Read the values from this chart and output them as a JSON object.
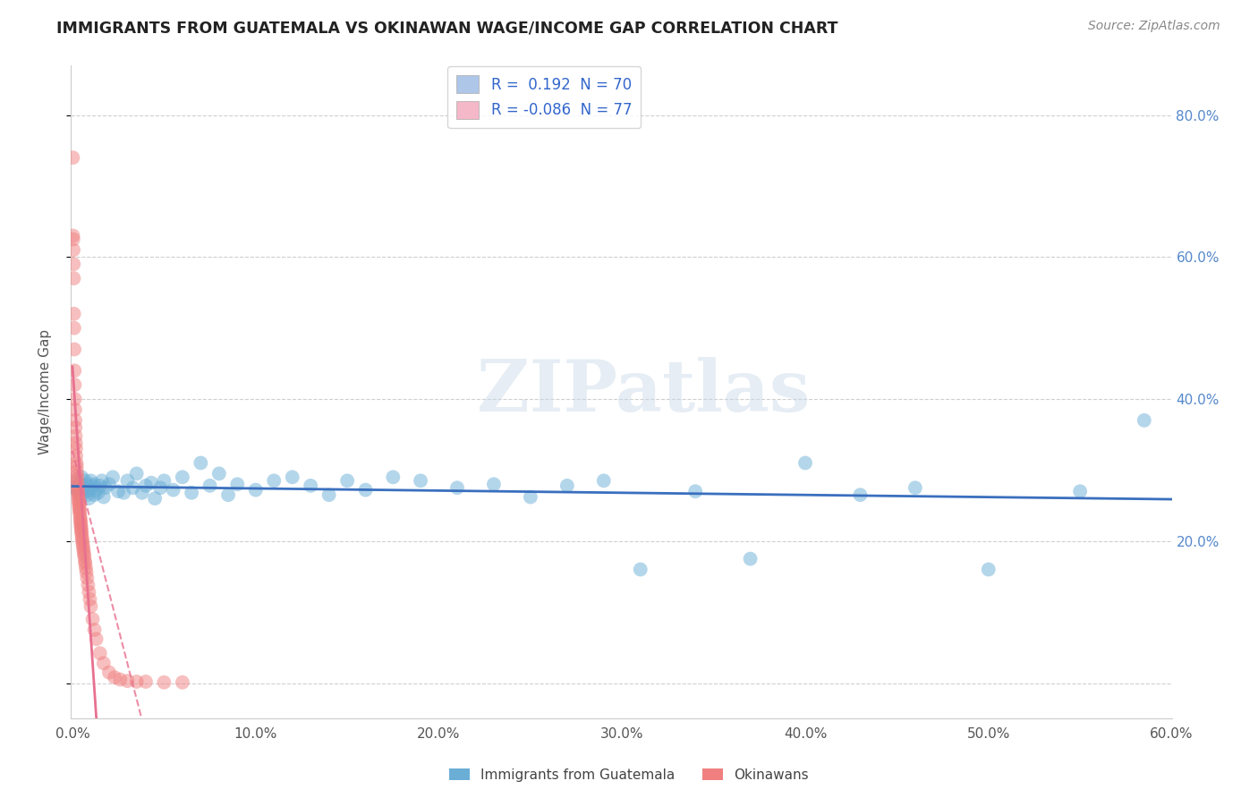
{
  "title": "IMMIGRANTS FROM GUATEMALA VS OKINAWAN WAGE/INCOME GAP CORRELATION CHART",
  "source": "Source: ZipAtlas.com",
  "ylabel": "Wage/Income Gap",
  "xlim": [
    -0.001,
    0.6
  ],
  "ylim": [
    -0.05,
    0.87
  ],
  "xticks": [
    0.0,
    0.1,
    0.2,
    0.3,
    0.4,
    0.5,
    0.6
  ],
  "yticks": [
    0.0,
    0.2,
    0.4,
    0.6,
    0.8
  ],
  "xticklabels": [
    "0.0%",
    "10.0%",
    "20.0%",
    "30.0%",
    "40.0%",
    "50.0%",
    "60.0%"
  ],
  "right_yticklabels": [
    "",
    "20.0%",
    "40.0%",
    "60.0%",
    "80.0%"
  ],
  "legend_entries": [
    {
      "label": "R =  0.192  N = 70",
      "color": "#aec6e8"
    },
    {
      "label": "R = -0.086  N = 77",
      "color": "#f4b8c8"
    }
  ],
  "blue_color": "#6aaed6",
  "pink_color": "#f08080",
  "blue_line_color": "#3a6fbe",
  "pink_line_color": "#e87090",
  "watermark": "ZIPatlas",
  "background_color": "#ffffff",
  "grid_color": "#bbbbbb",
  "blue_scatter_x": [
    0.001,
    0.002,
    0.003,
    0.004,
    0.004,
    0.005,
    0.005,
    0.006,
    0.006,
    0.007,
    0.007,
    0.008,
    0.008,
    0.009,
    0.009,
    0.01,
    0.01,
    0.011,
    0.012,
    0.012,
    0.013,
    0.014,
    0.015,
    0.016,
    0.017,
    0.018,
    0.02,
    0.022,
    0.025,
    0.028,
    0.03,
    0.033,
    0.035,
    0.038,
    0.04,
    0.043,
    0.045,
    0.048,
    0.05,
    0.055,
    0.06,
    0.065,
    0.07,
    0.075,
    0.08,
    0.085,
    0.09,
    0.1,
    0.11,
    0.12,
    0.13,
    0.14,
    0.15,
    0.16,
    0.175,
    0.19,
    0.21,
    0.23,
    0.25,
    0.27,
    0.29,
    0.31,
    0.34,
    0.37,
    0.4,
    0.43,
    0.46,
    0.5,
    0.55,
    0.585
  ],
  "blue_scatter_y": [
    0.275,
    0.285,
    0.27,
    0.265,
    0.28,
    0.272,
    0.29,
    0.268,
    0.278,
    0.285,
    0.27,
    0.265,
    0.28,
    0.275,
    0.26,
    0.272,
    0.285,
    0.278,
    0.265,
    0.28,
    0.272,
    0.268,
    0.278,
    0.285,
    0.262,
    0.275,
    0.28,
    0.29,
    0.27,
    0.268,
    0.285,
    0.275,
    0.295,
    0.268,
    0.278,
    0.282,
    0.26,
    0.275,
    0.285,
    0.272,
    0.29,
    0.268,
    0.31,
    0.278,
    0.295,
    0.265,
    0.28,
    0.272,
    0.285,
    0.29,
    0.278,
    0.265,
    0.285,
    0.272,
    0.29,
    0.285,
    0.275,
    0.28,
    0.262,
    0.278,
    0.285,
    0.16,
    0.27,
    0.175,
    0.31,
    0.265,
    0.275,
    0.16,
    0.27,
    0.37
  ],
  "pink_scatter_x": [
    0.0002,
    0.0003,
    0.0004,
    0.0005,
    0.0006,
    0.0007,
    0.0008,
    0.0009,
    0.001,
    0.0011,
    0.0012,
    0.0013,
    0.0014,
    0.0015,
    0.0016,
    0.0017,
    0.0018,
    0.0019,
    0.002,
    0.0022,
    0.0023,
    0.0024,
    0.0025,
    0.0026,
    0.0027,
    0.0028,
    0.0029,
    0.003,
    0.0031,
    0.0032,
    0.0033,
    0.0034,
    0.0035,
    0.0036,
    0.0037,
    0.0038,
    0.0039,
    0.004,
    0.0042,
    0.0043,
    0.0044,
    0.0045,
    0.0046,
    0.0047,
    0.0048,
    0.0049,
    0.005,
    0.0052,
    0.0053,
    0.0055,
    0.0057,
    0.0059,
    0.0061,
    0.0063,
    0.0065,
    0.0068,
    0.007,
    0.0073,
    0.0076,
    0.008,
    0.0085,
    0.009,
    0.0095,
    0.01,
    0.011,
    0.012,
    0.013,
    0.015,
    0.017,
    0.02,
    0.023,
    0.026,
    0.03,
    0.035,
    0.04,
    0.05,
    0.06
  ],
  "pink_scatter_y": [
    0.74,
    0.63,
    0.625,
    0.61,
    0.59,
    0.57,
    0.52,
    0.5,
    0.47,
    0.44,
    0.42,
    0.4,
    0.385,
    0.37,
    0.36,
    0.348,
    0.338,
    0.33,
    0.32,
    0.31,
    0.305,
    0.298,
    0.292,
    0.288,
    0.282,
    0.278,
    0.274,
    0.27,
    0.267,
    0.264,
    0.26,
    0.257,
    0.254,
    0.251,
    0.248,
    0.245,
    0.242,
    0.239,
    0.234,
    0.231,
    0.228,
    0.225,
    0.222,
    0.219,
    0.216,
    0.213,
    0.21,
    0.205,
    0.202,
    0.198,
    0.194,
    0.19,
    0.186,
    0.182,
    0.178,
    0.172,
    0.168,
    0.162,
    0.156,
    0.148,
    0.138,
    0.128,
    0.118,
    0.108,
    0.09,
    0.075,
    0.062,
    0.042,
    0.028,
    0.015,
    0.008,
    0.005,
    0.003,
    0.002,
    0.002,
    0.001,
    0.001
  ]
}
